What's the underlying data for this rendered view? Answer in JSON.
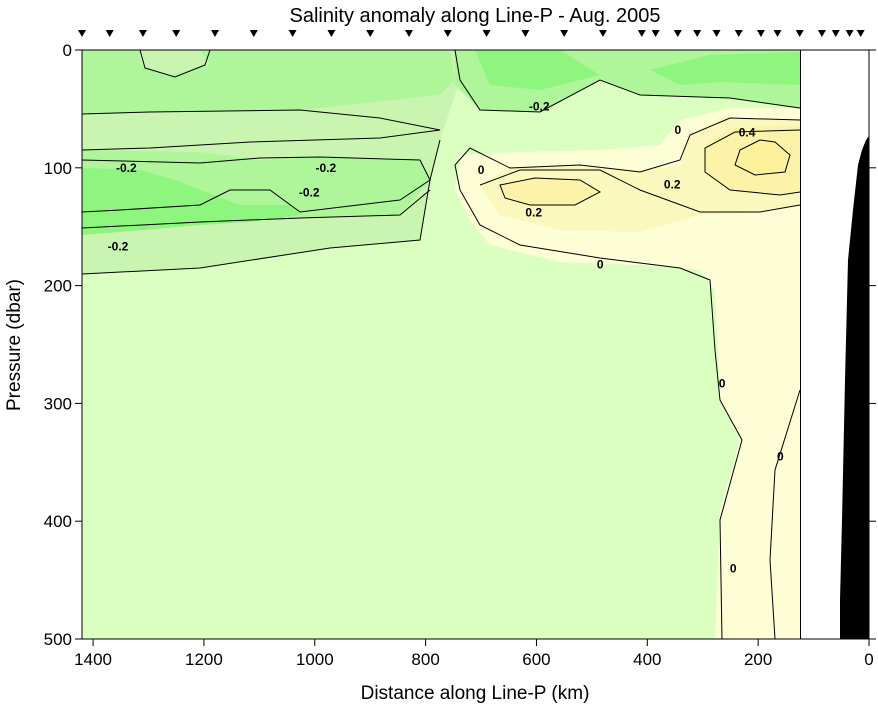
{
  "chart_data": {
    "type": "contour",
    "title": "Salinity anomaly along Line-P - Aug. 2005",
    "xlabel": "Distance along Line-P (km)",
    "ylabel": "Pressure (dbar)",
    "xlim": [
      1420,
      0
    ],
    "ylim": [
      0,
      500
    ],
    "x_ticks": [
      1400,
      1200,
      1000,
      800,
      600,
      400,
      200,
      0
    ],
    "y_ticks": [
      0,
      100,
      200,
      300,
      400,
      500
    ],
    "x_tick_labels": [
      "1400",
      "1200",
      "1000",
      "800",
      "600",
      "400",
      "200",
      "0"
    ],
    "y_tick_labels": [
      "0",
      "100",
      "200",
      "300",
      "400",
      "500"
    ],
    "stations_km": [
      1420,
      1370,
      1310,
      1250,
      1180,
      1110,
      1040,
      970,
      900,
      830,
      760,
      690,
      620,
      550,
      480,
      410,
      385,
      345,
      310,
      275,
      235,
      195,
      165,
      125,
      85,
      60,
      35,
      15
    ],
    "data_limit_km": 125,
    "contour_levels": [
      -0.3,
      -0.2,
      -0.1,
      0,
      0.1,
      0.2,
      0.3,
      0.4
    ],
    "level_colors": {
      "-0.3": "#8ef57e",
      "-0.2": "#aff59a",
      "-0.1": "#c9f5b0",
      "0": "#dbffc1",
      "0.1": "#fdfdd6",
      "0.2": "#fbf8be",
      "0.3": "#fdf3a8",
      "0.4": "#fdf09a"
    },
    "contour_labels": [
      {
        "text": "-0.2",
        "x": 1340,
        "y": 100
      },
      {
        "text": "-0.2",
        "x": 980,
        "y": 100
      },
      {
        "text": "-0.2",
        "x": 1010,
        "y": 121
      },
      {
        "text": "-0.2",
        "x": 1355,
        "y": 167
      },
      {
        "text": "-0.2",
        "x": 595,
        "y": 48
      },
      {
        "text": "0",
        "x": 700,
        "y": 102
      },
      {
        "text": "0",
        "x": 345,
        "y": 68
      },
      {
        "text": "0.4",
        "x": 220,
        "y": 70
      },
      {
        "text": "0.2",
        "x": 355,
        "y": 114
      },
      {
        "text": "0.2",
        "x": 605,
        "y": 138
      },
      {
        "text": "0",
        "x": 485,
        "y": 182
      },
      {
        "text": "0",
        "x": 265,
        "y": 283
      },
      {
        "text": "0",
        "x": 160,
        "y": 345
      },
      {
        "text": "0",
        "x": 245,
        "y": 440
      }
    ]
  }
}
